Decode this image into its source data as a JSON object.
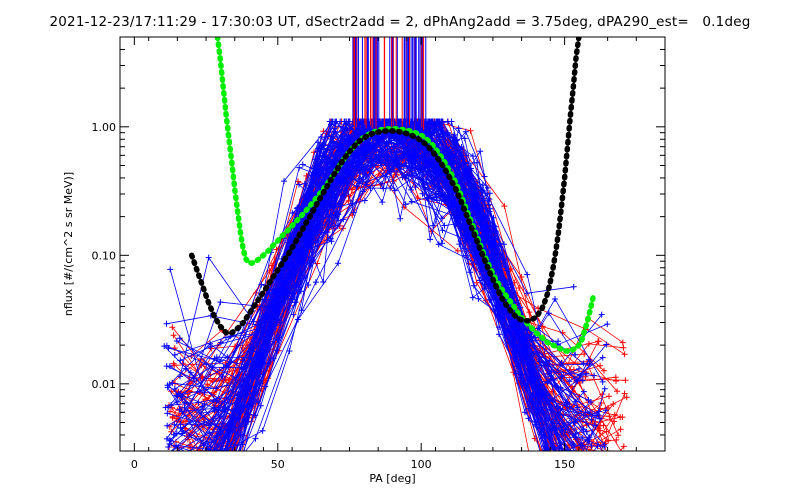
{
  "title": "2021-12-23/17:11:29 - 17:30:03 UT, dSectr2add = 2, dPhAng2add = 3.75deg, dPA290_est=   0.1deg",
  "chart_data": {
    "type": "line",
    "xlabel": "PA [deg]",
    "ylabel": "nflux [#/(cm^2 s sr MeV)]",
    "xlim": [
      -5,
      185
    ],
    "ylim": [
      0.003,
      5.0
    ],
    "y_scale": "log",
    "x_ticks": [
      0,
      50,
      100,
      150
    ],
    "x_tick_labels": [
      "0",
      "50",
      "100",
      "150"
    ],
    "y_ticks": [
      0.01,
      0.1,
      1.0
    ],
    "y_tick_labels": [
      "0.01",
      "0.10",
      "1.00"
    ],
    "grid": false,
    "series": [
      {
        "type": "line",
        "color": "#00ee00",
        "x": [
          29,
          30,
          31,
          32,
          33,
          34,
          35,
          36,
          37,
          38,
          39,
          40,
          41,
          42,
          43,
          44,
          45,
          46,
          47,
          48,
          50,
          52,
          54,
          56,
          58,
          60,
          62,
          64,
          66,
          68,
          70,
          72,
          74,
          76,
          78,
          80,
          82,
          84,
          86,
          88,
          90,
          92,
          94,
          96,
          98,
          100,
          102,
          104,
          106,
          108,
          110,
          112,
          114,
          116,
          118,
          120,
          122,
          124,
          126,
          128,
          130,
          132,
          134,
          136,
          138,
          140,
          142,
          144,
          146,
          148,
          150,
          152,
          154,
          155,
          156,
          157,
          158,
          159,
          160
        ],
        "y": [
          5.0,
          3.3,
          2.0,
          1.25,
          0.8,
          0.52,
          0.33,
          0.22,
          0.15,
          0.11,
          0.093,
          0.087,
          0.087,
          0.089,
          0.092,
          0.096,
          0.1,
          0.105,
          0.11,
          0.117,
          0.13,
          0.145,
          0.16,
          0.18,
          0.2,
          0.225,
          0.255,
          0.29,
          0.33,
          0.38,
          0.44,
          0.52,
          0.6,
          0.68,
          0.76,
          0.83,
          0.88,
          0.92,
          0.95,
          0.96,
          0.97,
          0.96,
          0.95,
          0.93,
          0.9,
          0.86,
          0.8,
          0.72,
          0.63,
          0.54,
          0.45,
          0.37,
          0.29,
          0.22,
          0.17,
          0.13,
          0.1,
          0.08,
          0.065,
          0.055,
          0.047,
          0.041,
          0.035,
          0.031,
          0.028,
          0.025,
          0.023,
          0.021,
          0.02,
          0.019,
          0.018,
          0.018,
          0.019,
          0.02,
          0.022,
          0.026,
          0.031,
          0.038,
          0.048
        ]
      },
      {
        "type": "line",
        "color": "#000000",
        "x": [
          20,
          22,
          24,
          26,
          28,
          30,
          32,
          34,
          36,
          38,
          40,
          42,
          44,
          46,
          48,
          50,
          52,
          54,
          56,
          58,
          60,
          62,
          64,
          66,
          68,
          70,
          72,
          74,
          76,
          78,
          80,
          82,
          84,
          86,
          88,
          90,
          92,
          94,
          96,
          98,
          100,
          102,
          104,
          106,
          108,
          110,
          112,
          114,
          116,
          118,
          120,
          122,
          124,
          126,
          128,
          130,
          132,
          134,
          136,
          138,
          140,
          142,
          143,
          144,
          145,
          146,
          147,
          148,
          149,
          150,
          151,
          152,
          153,
          154,
          155
        ],
        "y": [
          0.1,
          0.075,
          0.056,
          0.042,
          0.033,
          0.028,
          0.025,
          0.025,
          0.027,
          0.03,
          0.035,
          0.041,
          0.048,
          0.056,
          0.066,
          0.077,
          0.09,
          0.105,
          0.125,
          0.15,
          0.18,
          0.215,
          0.26,
          0.31,
          0.37,
          0.44,
          0.52,
          0.6,
          0.68,
          0.76,
          0.82,
          0.87,
          0.9,
          0.92,
          0.93,
          0.93,
          0.92,
          0.9,
          0.87,
          0.83,
          0.78,
          0.72,
          0.64,
          0.56,
          0.48,
          0.4,
          0.33,
          0.26,
          0.2,
          0.155,
          0.12,
          0.093,
          0.073,
          0.058,
          0.047,
          0.04,
          0.035,
          0.032,
          0.031,
          0.031,
          0.033,
          0.038,
          0.043,
          0.05,
          0.062,
          0.08,
          0.11,
          0.16,
          0.25,
          0.4,
          0.7,
          1.2,
          2.0,
          3.5,
          5.0
        ]
      }
    ]
  }
}
